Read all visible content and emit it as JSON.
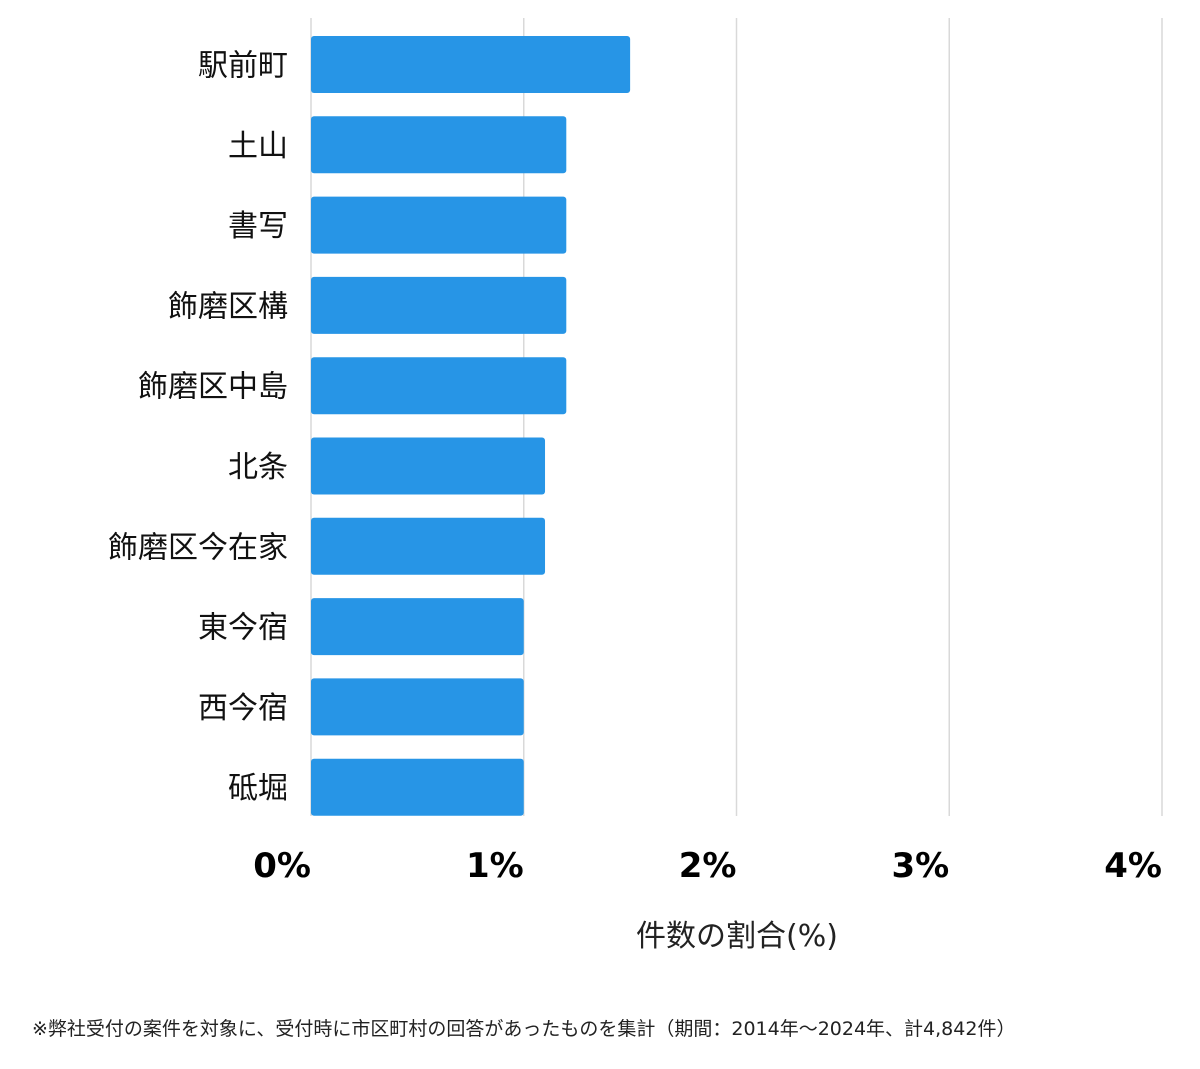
{
  "chart_data": {
    "type": "bar",
    "orientation": "horizontal",
    "categories": [
      "駅前町",
      "土山",
      "書写",
      "飾磨区構",
      "飾磨区中島",
      "北条",
      "飾磨区今在家",
      "東今宿",
      "西今宿",
      "砥堀"
    ],
    "values": [
      1.5,
      1.2,
      1.2,
      1.2,
      1.2,
      1.1,
      1.1,
      1.0,
      1.0,
      1.0
    ],
    "xticks": [
      "0%",
      "1%",
      "2%",
      "3%",
      "4%"
    ],
    "xlim": [
      0,
      4
    ],
    "xlabel": "件数の割合(%)",
    "title": "",
    "grid": true,
    "bar_color": "#2795e6"
  },
  "footnote": "※弊社受付の案件を対象に、受付時に市区町村の回答があったものを集計（期間：2014年〜2024年、計4,842件）"
}
